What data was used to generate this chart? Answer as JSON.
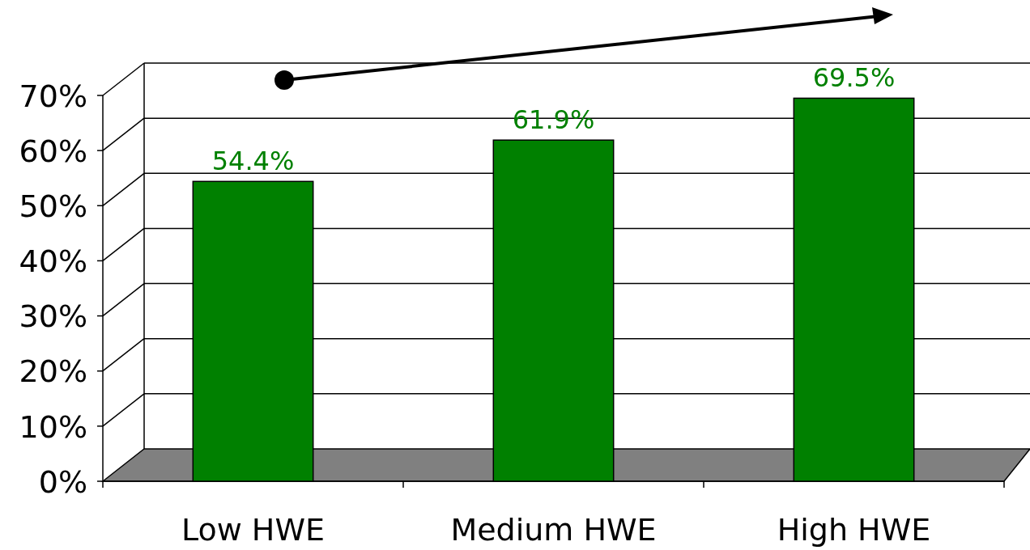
{
  "chart_data": {
    "type": "bar",
    "categories": [
      "Low HWE",
      "Medium HWE",
      "High HWE"
    ],
    "values": [
      54.4,
      61.9,
      69.5
    ],
    "value_labels": [
      "54.4%",
      "61.9%",
      "69.5%"
    ],
    "color": "#008000",
    "ylim": [
      0,
      70
    ],
    "yticks": [
      {
        "value": 0,
        "label": "0%"
      },
      {
        "value": 10,
        "label": "10%"
      },
      {
        "value": 20,
        "label": "20%"
      },
      {
        "value": 30,
        "label": "30%"
      },
      {
        "value": 40,
        "label": "40%"
      },
      {
        "value": 50,
        "label": "50%"
      },
      {
        "value": 60,
        "label": "60%"
      },
      {
        "value": 70,
        "label": "70%"
      }
    ],
    "grid": "y"
  }
}
